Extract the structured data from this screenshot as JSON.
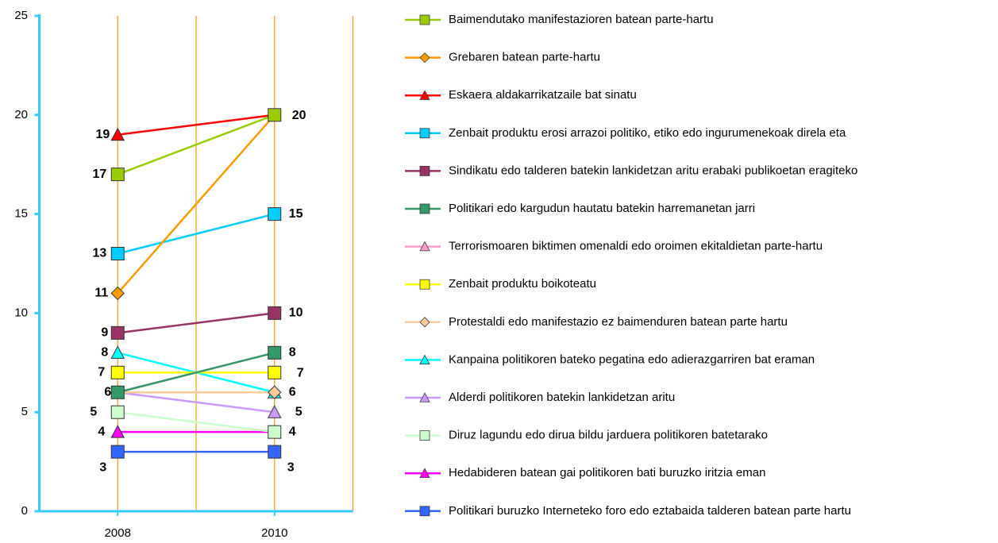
{
  "chart_data": {
    "type": "line",
    "categories": [
      "2008",
      "2010"
    ],
    "ylim": [
      0,
      25
    ],
    "yticks": [
      0,
      5,
      10,
      15,
      20,
      25
    ],
    "grid": true,
    "legend": "right",
    "series": [
      {
        "name": "Baimendutako manifestazioren batean parte-hartu",
        "color": "#99cc00",
        "marker": "square",
        "values": [
          17,
          20
        ]
      },
      {
        "name": "Grebaren batean parte-hartu",
        "color": "#ff9900",
        "marker": "diamond",
        "values": [
          11,
          20
        ]
      },
      {
        "name": "Eskaera aldakarrikatzaile bat sinatu",
        "color": "#ff0000",
        "marker": "triangle",
        "values": [
          19,
          20
        ]
      },
      {
        "name": "Zenbait produktu erosi arrazoi politiko, etiko edo ingurumenekoak direla eta",
        "color": "#00ccff",
        "marker": "square",
        "values": [
          13,
          15
        ]
      },
      {
        "name": "Sindikatu edo talderen batekin lankidetzan aritu erabaki publikoetan eragiteko",
        "color": "#993366",
        "marker": "square",
        "values": [
          9,
          10
        ]
      },
      {
        "name": "Politikari edo kargudun hautatu batekin harremanetan jarri",
        "color": "#339966",
        "marker": "square",
        "values": [
          6,
          8
        ]
      },
      {
        "name": "Terrorismoaren biktimen omenaldi edo oroimen ekitaldietan parte-hartu",
        "color": "#ff99cc",
        "marker": "triangle",
        "values": [
          6,
          8
        ]
      },
      {
        "name": "Zenbait produktu boikoteatu",
        "color": "#ffff00",
        "marker": "square",
        "values": [
          7,
          7
        ]
      },
      {
        "name": "Protestaldi edo manifestazio ez baimenduren batean parte hartu",
        "color": "#ffcc99",
        "marker": "diamond",
        "values": [
          6,
          6
        ]
      },
      {
        "name": "Kanpaina politikoren bateko pegatina edo adierazgarriren bat eraman",
        "color": "#00ffff",
        "marker": "triangle",
        "values": [
          8,
          6
        ]
      },
      {
        "name": "Alderdi politikoren batekin lankidetzan aritu",
        "color": "#cc99ff",
        "marker": "triangle",
        "values": [
          6,
          5
        ]
      },
      {
        "name": "Diruz lagundu edo dirua bildu jarduera politikoren batetarako",
        "color": "#ccffcc",
        "marker": "square",
        "values": [
          5,
          4
        ]
      },
      {
        "name": "Hedabideren batean gai politikoren bati buruzko iritzia eman",
        "color": "#ff00ff",
        "marker": "triangle",
        "values": [
          4,
          4
        ]
      },
      {
        "name": "Politikari buruzko Interneteko foro edo eztabaida talderen batean parte hartu",
        "color": "#3366ff",
        "marker": "square",
        "values": [
          3,
          3
        ]
      }
    ]
  }
}
